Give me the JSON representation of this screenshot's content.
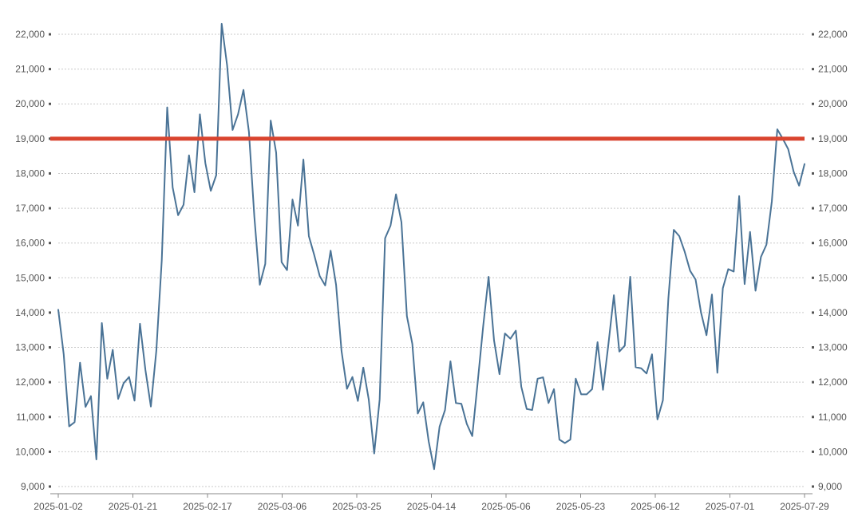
{
  "chart_data": {
    "type": "line",
    "title": "",
    "xlabel": "",
    "ylabel": "",
    "ylim": [
      9000,
      22000
    ],
    "y_ticks": [
      9000,
      10000,
      11000,
      12000,
      13000,
      14000,
      15000,
      16000,
      17000,
      18000,
      19000,
      20000,
      21000,
      22000
    ],
    "y_tick_labels": [
      "9,000",
      "10,000",
      "11,000",
      "12,000",
      "13,000",
      "14,000",
      "15,000",
      "16,000",
      "17,000",
      "18,000",
      "19,000",
      "20,000",
      "21,000",
      "22,000"
    ],
    "x_tick_labels": [
      "2025-01-02",
      "2025-01-21",
      "2025-02-17",
      "2025-03-06",
      "2025-03-25",
      "2025-04-14",
      "2025-05-06",
      "2025-05-23",
      "2025-06-12",
      "2025-07-01",
      "2025-07-29"
    ],
    "grid": true,
    "dual_y_axis": true,
    "series_color": "#4a7396",
    "reference_line": {
      "y": 19000,
      "color": "#d9442f"
    },
    "series": [
      {
        "values": [
          14080,
          12800,
          10730,
          10850,
          12560,
          11290,
          11600,
          9780,
          13700,
          12100,
          12930,
          11520,
          11970,
          12150,
          11470,
          13680,
          12350,
          11300,
          12900,
          15500,
          19900,
          17600,
          16800,
          17100,
          18520,
          17460,
          19700,
          18300,
          17500,
          17950,
          22300,
          21100,
          19250,
          19700,
          20400,
          19200,
          16750,
          14800,
          15400,
          19520,
          18600,
          15450,
          15220,
          17250,
          16500,
          18400,
          16200,
          15650,
          15050,
          14780,
          15780,
          14800,
          12900,
          11810,
          12150,
          11460,
          12420,
          11500,
          9950,
          11500,
          16140,
          16500,
          17400,
          16600,
          13900,
          13100,
          11100,
          11420,
          10300,
          9500,
          10720,
          11200,
          12600,
          11400,
          11380,
          10800,
          10450,
          12000,
          13600,
          15030,
          13200,
          12230,
          13400,
          13250,
          13480,
          11870,
          11230,
          11200,
          12100,
          12140,
          11400,
          11800,
          10350,
          10250,
          10350,
          12100,
          11650,
          11650,
          11800,
          13150,
          11780,
          13100,
          14500,
          12880,
          13050,
          15030,
          12430,
          12400,
          12250,
          12800,
          10930,
          11480,
          14400,
          16380,
          16200,
          15750,
          15200,
          14950,
          14000,
          13350,
          14520,
          12270,
          14700,
          15250,
          15180,
          17350,
          14820,
          16320,
          14630,
          15600,
          15950,
          17200,
          19270,
          19000,
          18700,
          18050,
          17650,
          18270
        ]
      }
    ]
  }
}
